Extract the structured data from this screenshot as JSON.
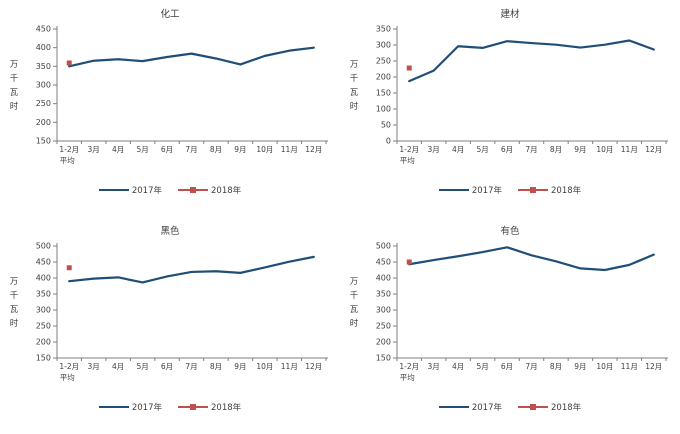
{
  "page": {
    "background": "#ffffff"
  },
  "colors": {
    "series_2017": "#1F4E79",
    "series_2018": "#C0504D",
    "axis": "#7F7F7F",
    "tick_text": "#404040",
    "title_text": "#404040"
  },
  "legend": {
    "labels": [
      "2017年",
      "2018年"
    ],
    "position": "bottom"
  },
  "chart_data": [
    {
      "type": "line",
      "title": "化工",
      "ylabel": "万千瓦时",
      "xlabel": "",
      "grid": false,
      "ylim": [
        150,
        450
      ],
      "ytick_step": 50,
      "categories": [
        [
          "1-2月",
          "平均"
        ],
        "3月",
        "4月",
        "5月",
        "6月",
        "7月",
        "8月",
        "9月",
        "10月",
        "11月",
        "12月"
      ],
      "series": [
        {
          "name": "2017年",
          "type": "line",
          "values": [
            350,
            365,
            369,
            364,
            375,
            384,
            371,
            355,
            378,
            392,
            400
          ]
        },
        {
          "name": "2018年",
          "type": "marker",
          "values": [
            359
          ]
        }
      ]
    },
    {
      "type": "line",
      "title": "建材",
      "ylabel": "万千瓦时",
      "xlabel": "",
      "grid": false,
      "ylim": [
        0,
        350
      ],
      "ytick_step": 50,
      "categories": [
        [
          "1-2月",
          "平均"
        ],
        "3月",
        "4月",
        "5月",
        "6月",
        "7月",
        "8月",
        "9月",
        "10月",
        "11月",
        "12月"
      ],
      "series": [
        {
          "name": "2017年",
          "type": "line",
          "values": [
            187,
            220,
            296,
            291,
            312,
            306,
            301,
            292,
            301,
            314,
            286
          ]
        },
        {
          "name": "2018年",
          "type": "marker",
          "values": [
            228
          ]
        }
      ]
    },
    {
      "type": "line",
      "title": "黑色",
      "ylabel": "万千瓦时",
      "xlabel": "",
      "grid": false,
      "ylim": [
        150,
        500
      ],
      "ytick_step": 50,
      "categories": [
        [
          "1-2月",
          "平均"
        ],
        "3月",
        "4月",
        "5月",
        "6月",
        "7月",
        "8月",
        "9月",
        "10月",
        "11月",
        "12月"
      ],
      "series": [
        {
          "name": "2017年",
          "type": "line",
          "values": [
            390,
            398,
            402,
            386,
            405,
            419,
            421,
            416,
            433,
            451,
            466
          ]
        },
        {
          "name": "2018年",
          "type": "marker",
          "values": [
            432
          ]
        }
      ]
    },
    {
      "type": "line",
      "title": "有色",
      "ylabel": "万千瓦时",
      "xlabel": "",
      "grid": false,
      "ylim": [
        150,
        500
      ],
      "ytick_step": 50,
      "categories": [
        [
          "1-2月",
          "平均"
        ],
        "3月",
        "4月",
        "5月",
        "6月",
        "7月",
        "8月",
        "9月",
        "10月",
        "11月",
        "12月"
      ],
      "series": [
        {
          "name": "2017年",
          "type": "line",
          "values": [
            443,
            456,
            468,
            481,
            496,
            471,
            452,
            430,
            425,
            441,
            473
          ]
        },
        {
          "name": "2018年",
          "type": "marker",
          "values": [
            450
          ]
        }
      ]
    }
  ]
}
